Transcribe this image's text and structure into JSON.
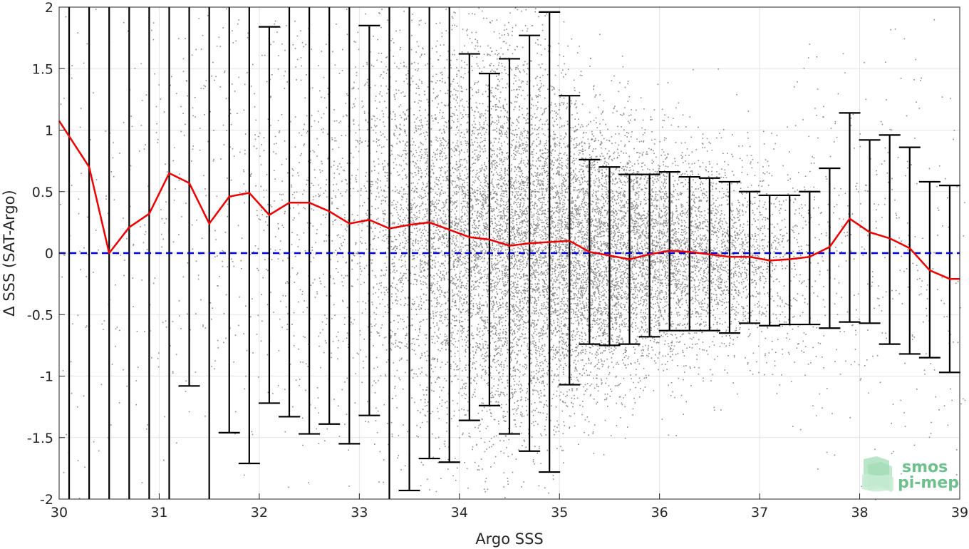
{
  "chart_data": {
    "type": "scatter",
    "xlabel": "Argo SSS",
    "ylabel": "Δ SSS (SAT-Argo)",
    "xlim": [
      30,
      39
    ],
    "ylim": [
      -2,
      2
    ],
    "x_ticks": [
      "30",
      "31",
      "32",
      "33",
      "34",
      "35",
      "36",
      "37",
      "38",
      "39"
    ],
    "y_ticks": [
      "-2",
      "-1.5",
      "-1",
      "-0.5",
      "0",
      "0.5",
      "1",
      "1.5",
      "2"
    ],
    "grid": true,
    "reference_line": {
      "y": 0,
      "style": "dashed",
      "color": "#0000cc"
    },
    "mean_line": {
      "color": "#ee0000",
      "x": [
        30.1,
        30.3,
        30.5,
        30.7,
        30.9,
        31.1,
        31.3,
        31.5,
        31.7,
        31.9,
        32.1,
        32.3,
        32.5,
        32.7,
        32.9,
        33.1,
        33.3,
        33.5,
        33.7,
        33.9,
        34.1,
        34.3,
        34.5,
        34.7,
        34.9,
        35.1,
        35.3,
        35.5,
        35.7,
        35.9,
        36.1,
        36.3,
        36.5,
        36.7,
        36.9,
        37.1,
        37.3,
        37.5,
        37.7,
        37.9,
        38.1,
        38.3,
        38.5,
        38.7,
        38.9
      ],
      "y": [
        0.95,
        0.7,
        0.0,
        0.21,
        0.32,
        0.65,
        0.57,
        0.24,
        0.46,
        0.49,
        0.31,
        0.41,
        0.41,
        0.34,
        0.24,
        0.27,
        0.2,
        0.23,
        0.25,
        0.19,
        0.13,
        0.11,
        0.06,
        0.08,
        0.09,
        0.1,
        0.01,
        -0.02,
        -0.05,
        -0.01,
        0.02,
        0.01,
        -0.01,
        -0.03,
        -0.03,
        -0.06,
        -0.05,
        -0.03,
        0.05,
        0.28,
        0.17,
        0.12,
        0.04,
        -0.14,
        -0.21
      ]
    },
    "error_bars": {
      "color": "#000000",
      "x": [
        30.1,
        30.3,
        30.5,
        30.7,
        30.9,
        31.1,
        31.3,
        31.5,
        31.7,
        31.9,
        32.1,
        32.3,
        32.5,
        32.7,
        32.9,
        33.1,
        33.3,
        33.5,
        33.7,
        33.9,
        34.1,
        34.3,
        34.5,
        34.7,
        34.9,
        35.1,
        35.3,
        35.5,
        35.7,
        35.9,
        36.1,
        36.3,
        36.5,
        36.7,
        36.9,
        37.1,
        37.3,
        37.5,
        37.7,
        37.9,
        38.1,
        38.3,
        38.5,
        38.7,
        38.9
      ],
      "upper": [
        2.5,
        2.5,
        2.5,
        2.5,
        2.5,
        2.5,
        2.5,
        2.5,
        2.5,
        2.5,
        1.84,
        2.5,
        2.5,
        2.5,
        2.5,
        1.85,
        2.5,
        2.5,
        2.5,
        2.5,
        1.62,
        1.46,
        1.58,
        1.77,
        1.96,
        1.28,
        0.76,
        0.7,
        0.64,
        0.64,
        0.66,
        0.62,
        0.61,
        0.58,
        0.5,
        0.47,
        0.47,
        0.5,
        0.69,
        1.14,
        0.92,
        0.96,
        0.86,
        0.58,
        0.55
      ],
      "lower": [
        -2.5,
        -2.5,
        -2.5,
        -2.5,
        -2.5,
        -2.5,
        -1.08,
        -2.5,
        -1.46,
        -1.71,
        -1.22,
        -1.33,
        -1.47,
        -1.39,
        -1.55,
        -1.32,
        -2.5,
        -1.93,
        -1.67,
        -1.7,
        -1.36,
        -1.24,
        -1.47,
        -1.61,
        -1.78,
        -1.07,
        -0.74,
        -0.75,
        -0.74,
        -0.68,
        -0.63,
        -0.63,
        -0.63,
        -0.65,
        -0.57,
        -0.59,
        -0.58,
        -0.58,
        -0.61,
        -0.56,
        -0.57,
        -0.74,
        -0.82,
        -0.85,
        -0.97
      ]
    },
    "scatter": {
      "color": "#8c8c8c",
      "density_profile": [
        {
          "x": 30.0,
          "mean": 0.6,
          "spread": 1.5,
          "count": 25
        },
        {
          "x": 31.0,
          "mean": 0.5,
          "spread": 1.2,
          "count": 35
        },
        {
          "x": 32.0,
          "mean": 0.4,
          "spread": 1.0,
          "count": 60
        },
        {
          "x": 33.0,
          "mean": 0.25,
          "spread": 0.8,
          "count": 140
        },
        {
          "x": 33.7,
          "mean": 0.2,
          "spread": 0.8,
          "count": 500
        },
        {
          "x": 34.5,
          "mean": 0.08,
          "spread": 0.8,
          "count": 900
        },
        {
          "x": 35.3,
          "mean": 0.0,
          "spread": 0.55,
          "count": 750
        },
        {
          "x": 36.0,
          "mean": 0.0,
          "spread": 0.45,
          "count": 520
        },
        {
          "x": 36.6,
          "mean": -0.02,
          "spread": 0.4,
          "count": 360
        },
        {
          "x": 37.2,
          "mean": -0.05,
          "spread": 0.4,
          "count": 120
        },
        {
          "x": 37.7,
          "mean": 0.05,
          "spread": 0.8,
          "count": 45
        },
        {
          "x": 38.5,
          "mean": 0.05,
          "spread": 0.8,
          "count": 35
        },
        {
          "x": 39.0,
          "mean": -0.2,
          "spread": 0.8,
          "count": 20
        }
      ]
    }
  },
  "logo": {
    "line1": "smos",
    "line2": "pi-mep",
    "color": "#6fbf8f"
  }
}
